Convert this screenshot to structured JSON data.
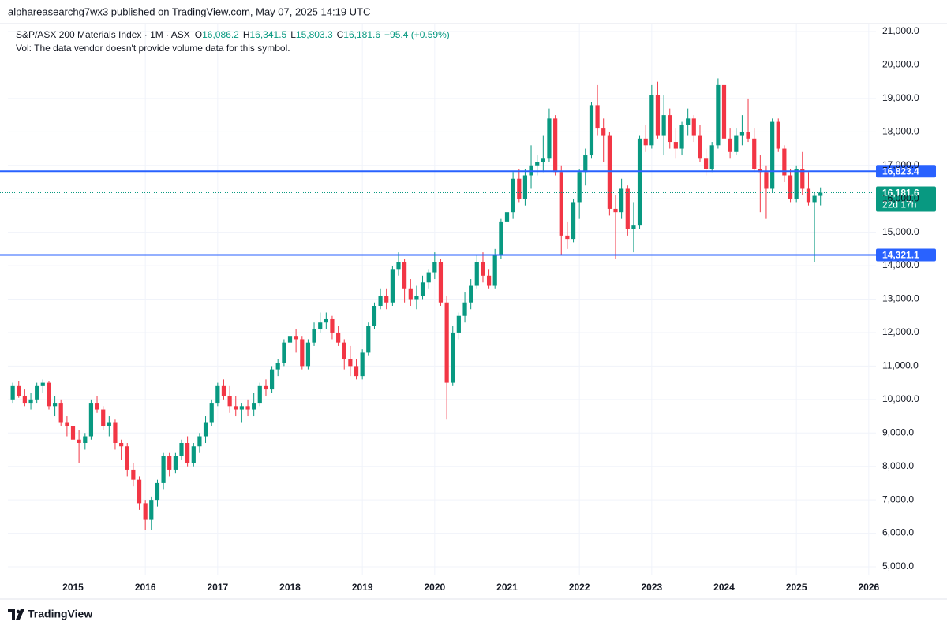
{
  "header": {
    "published": "alphareasearchg7wx3 published on TradingView.com, May 07, 2025 14:19 UTC"
  },
  "footer": {
    "brand": "TradingView"
  },
  "chart_data": {
    "type": "candlestick",
    "symbol": "S&P/ASX 200 Materials Index · 1M · ASX",
    "ohlc_legend": [
      {
        "label": "O",
        "value": "16,086.2"
      },
      {
        "label": "H",
        "value": "16,341.5"
      },
      {
        "label": "L",
        "value": "15,803.3"
      },
      {
        "label": "C",
        "value": "16,181.6"
      }
    ],
    "change": "+95.4 (+0.59%)",
    "volume_note": "Vol: The data vendor doesn't provide volume data for this symbol.",
    "up_color": "#089981",
    "down_color": "#f23645",
    "grid": true,
    "xlim": [
      2014.1,
      2026.1
    ],
    "xticks": [
      2015,
      2016,
      2017,
      2018,
      2019,
      2020,
      2021,
      2022,
      2023,
      2024,
      2025,
      2026
    ],
    "ylim": [
      4741,
      21236
    ],
    "yticks": [
      {
        "value": 5000,
        "label": "5,000.0"
      },
      {
        "value": 6000,
        "label": "6,000.0"
      },
      {
        "value": 7000,
        "label": "7,000.0"
      },
      {
        "value": 8000,
        "label": "8,000.0"
      },
      {
        "value": 9000,
        "label": "9,000.0"
      },
      {
        "value": 10000,
        "label": "10,000.0"
      },
      {
        "value": 11000,
        "label": "11,000.0"
      },
      {
        "value": 12000,
        "label": "12,000.0"
      },
      {
        "value": 13000,
        "label": "13,000.0"
      },
      {
        "value": 14000,
        "label": "14,000.0"
      },
      {
        "value": 15000,
        "label": "15,000.0"
      },
      {
        "value": 16000,
        "label": "16,000.0"
      },
      {
        "value": 17000,
        "label": "17,000.0"
      },
      {
        "value": 18000,
        "label": "18,000.0"
      },
      {
        "value": 19000,
        "label": "19,000.0"
      },
      {
        "value": 20000,
        "label": "20,000.0"
      },
      {
        "value": 21000,
        "label": "21,000.0"
      }
    ],
    "levels": [
      {
        "value": 16823.4,
        "label": "16,823.4",
        "color": "#2962ff"
      },
      {
        "value": 14321.1,
        "label": "14,321.1",
        "color": "#2962ff"
      }
    ],
    "last_price": {
      "value": 16181.6,
      "label": "16,181.6",
      "countdown": "22d 17h"
    },
    "x": [
      2014.167,
      2014.25,
      2014.333,
      2014.417,
      2014.5,
      2014.583,
      2014.667,
      2014.75,
      2014.833,
      2014.917,
      2015,
      2015.083,
      2015.167,
      2015.25,
      2015.333,
      2015.417,
      2015.5,
      2015.583,
      2015.667,
      2015.75,
      2015.833,
      2015.917,
      2016,
      2016.083,
      2016.167,
      2016.25,
      2016.333,
      2016.417,
      2016.5,
      2016.583,
      2016.667,
      2016.75,
      2016.833,
      2016.917,
      2017,
      2017.083,
      2017.167,
      2017.25,
      2017.333,
      2017.417,
      2017.5,
      2017.583,
      2017.667,
      2017.75,
      2017.833,
      2017.917,
      2018,
      2018.083,
      2018.167,
      2018.25,
      2018.333,
      2018.417,
      2018.5,
      2018.583,
      2018.667,
      2018.75,
      2018.833,
      2018.917,
      2019,
      2019.083,
      2019.167,
      2019.25,
      2019.333,
      2019.417,
      2019.5,
      2019.583,
      2019.667,
      2019.75,
      2019.833,
      2019.917,
      2020,
      2020.083,
      2020.167,
      2020.25,
      2020.333,
      2020.417,
      2020.5,
      2020.583,
      2020.667,
      2020.75,
      2020.833,
      2020.917,
      2021,
      2021.083,
      2021.167,
      2021.25,
      2021.333,
      2021.417,
      2021.5,
      2021.583,
      2021.667,
      2021.75,
      2021.833,
      2021.917,
      2022,
      2022.083,
      2022.167,
      2022.25,
      2022.333,
      2022.417,
      2022.5,
      2022.583,
      2022.667,
      2022.75,
      2022.833,
      2022.917,
      2023,
      2023.083,
      2023.167,
      2023.25,
      2023.333,
      2023.417,
      2023.5,
      2023.583,
      2023.667,
      2023.75,
      2023.833,
      2023.917,
      2024,
      2024.083,
      2024.167,
      2024.25,
      2024.333,
      2024.417,
      2024.5,
      2024.583,
      2024.667,
      2024.75,
      2024.833,
      2024.917,
      2025,
      2025.083,
      2025.167,
      2025.25,
      2025.333
    ],
    "open": [
      10000,
      10400,
      10100,
      9900,
      10000,
      10400,
      10500,
      9800,
      9900,
      9300,
      9200,
      8800,
      8700,
      8900,
      9900,
      9700,
      9200,
      9300,
      8700,
      8600,
      7900,
      7600,
      6900,
      6400,
      7000,
      7500,
      8300,
      7900,
      8300,
      8700,
      8100,
      8600,
      8900,
      9300,
      9900,
      10400,
      10100,
      9800,
      9700,
      9800,
      9700,
      9900,
      10400,
      10300,
      10900,
      11100,
      11700,
      11900,
      11800,
      11000,
      11700,
      12100,
      12300,
      12400,
      12000,
      11700,
      11200,
      11000,
      10700,
      11400,
      12200,
      12800,
      13100,
      12900,
      13900,
      14100,
      13300,
      13000,
      13100,
      13500,
      13800,
      14100,
      12900,
      10500,
      12000,
      12500,
      12900,
      13400,
      14100,
      13700,
      13400,
      14300,
      15300,
      15600,
      16600,
      16000,
      16700,
      17000,
      17100,
      17200,
      18400,
      16800,
      14900,
      14800,
      15900,
      16800,
      17300,
      18800,
      18100,
      17900,
      15700,
      15600,
      16300,
      15100,
      15200,
      17800,
      17600,
      19100,
      17900,
      18500,
      17700,
      17500,
      18200,
      18400,
      17900,
      17200,
      16900,
      17600,
      19400,
      17800,
      17400,
      17900,
      18000,
      17800,
      16900,
      16800,
      16300,
      18300,
      17500,
      16700,
      16000,
      16900,
      16300,
      15900,
      16086.2
    ],
    "high": [
      10500,
      10550,
      10300,
      10200,
      10500,
      10600,
      10550,
      10100,
      10000,
      9500,
      9300,
      9100,
      9000,
      10000,
      10100,
      9800,
      9500,
      9400,
      8800,
      8700,
      8100,
      7700,
      7000,
      7100,
      7600,
      8400,
      8400,
      8400,
      8800,
      8900,
      8700,
      9000,
      9500,
      10000,
      10500,
      10600,
      10400,
      10100,
      9900,
      10000,
      10200,
      10500,
      10600,
      11000,
      11200,
      11800,
      12000,
      12100,
      11900,
      11800,
      12300,
      12600,
      12600,
      12500,
      12200,
      11800,
      11600,
      11200,
      11500,
      12300,
      12900,
      13300,
      13300,
      14000,
      14400,
      14200,
      13600,
      13400,
      13700,
      13900,
      14400,
      14200,
      13100,
      12200,
      12600,
      13200,
      13600,
      14300,
      14400,
      13900,
      14500,
      15400,
      16200,
      16800,
      16900,
      16900,
      17600,
      17300,
      17900,
      18700,
      18500,
      17000,
      15300,
      16000,
      16900,
      17500,
      18900,
      19400,
      18400,
      18000,
      16100,
      16600,
      16400,
      15900,
      17900,
      18200,
      19400,
      19500,
      19100,
      18700,
      18100,
      18300,
      18700,
      18500,
      18200,
      17500,
      17700,
      19600,
      19600,
      18100,
      18100,
      18500,
      19000,
      18100,
      17300,
      17000,
      18400,
      18400,
      17600,
      16900,
      17000,
      17400,
      16800,
      16200,
      16341.5
    ],
    "low": [
      9900,
      10050,
      9800,
      9700,
      9900,
      10200,
      9700,
      9500,
      9200,
      8900,
      8700,
      8100,
      8500,
      8800,
      9600,
      9100,
      8900,
      8500,
      8200,
      7700,
      7400,
      6700,
      6100,
      6100,
      6800,
      7300,
      7700,
      7800,
      8200,
      8000,
      8000,
      8400,
      8700,
      9200,
      9800,
      10000,
      9600,
      9500,
      9300,
      9500,
      9500,
      9800,
      10100,
      10200,
      10700,
      11000,
      11500,
      11400,
      10900,
      10900,
      11600,
      12000,
      12100,
      11800,
      11600,
      10900,
      10700,
      10600,
      10600,
      11300,
      12100,
      12700,
      12700,
      12800,
      13700,
      12900,
      12800,
      12700,
      13000,
      13300,
      13600,
      12800,
      9400,
      10400,
      11800,
      12300,
      12700,
      13300,
      13500,
      13300,
      13300,
      14200,
      15000,
      15400,
      15900,
      15800,
      16300,
      16700,
      16800,
      17100,
      16700,
      14300,
      14500,
      14700,
      15400,
      16400,
      17200,
      17900,
      17100,
      15500,
      14200,
      15400,
      14900,
      14400,
      15100,
      17400,
      17500,
      17800,
      17300,
      17500,
      17200,
      17300,
      17900,
      17700,
      17100,
      16700,
      16800,
      17500,
      17600,
      17200,
      17300,
      17600,
      17700,
      16800,
      15600,
      15400,
      16200,
      17400,
      16500,
      15900,
      15900,
      16100,
      15800,
      14100,
      15803.3
    ],
    "close": [
      10400,
      10100,
      9900,
      10000,
      10400,
      10500,
      9800,
      9900,
      9300,
      9200,
      8800,
      8700,
      8900,
      9900,
      9700,
      9200,
      9300,
      8700,
      8600,
      7900,
      7600,
      6900,
      6400,
      7000,
      7500,
      8300,
      7900,
      8300,
      8700,
      8100,
      8600,
      8900,
      9300,
      9900,
      10400,
      10100,
      9800,
      9700,
      9800,
      9700,
      9900,
      10400,
      10300,
      10900,
      11100,
      11700,
      11900,
      11800,
      11000,
      11700,
      12100,
      12300,
      12400,
      12000,
      11700,
      11200,
      11000,
      10700,
      11400,
      12200,
      12800,
      13100,
      12900,
      13900,
      14100,
      13300,
      13000,
      13100,
      13500,
      13800,
      14100,
      12900,
      10500,
      12000,
      12500,
      12900,
      13400,
      14100,
      13700,
      13400,
      14300,
      15300,
      15600,
      16600,
      16000,
      16700,
      17000,
      17100,
      17200,
      18400,
      16800,
      14900,
      14800,
      15900,
      16800,
      17300,
      18800,
      18100,
      17900,
      15700,
      15600,
      16300,
      15100,
      15200,
      17800,
      17600,
      19100,
      17900,
      18500,
      17700,
      17500,
      18200,
      18400,
      17900,
      17200,
      16900,
      17600,
      19400,
      17800,
      17400,
      17900,
      18000,
      17800,
      16900,
      16800,
      16300,
      18300,
      17500,
      16700,
      16000,
      16900,
      16300,
      15900,
      16086.2,
      16181.6
    ]
  }
}
